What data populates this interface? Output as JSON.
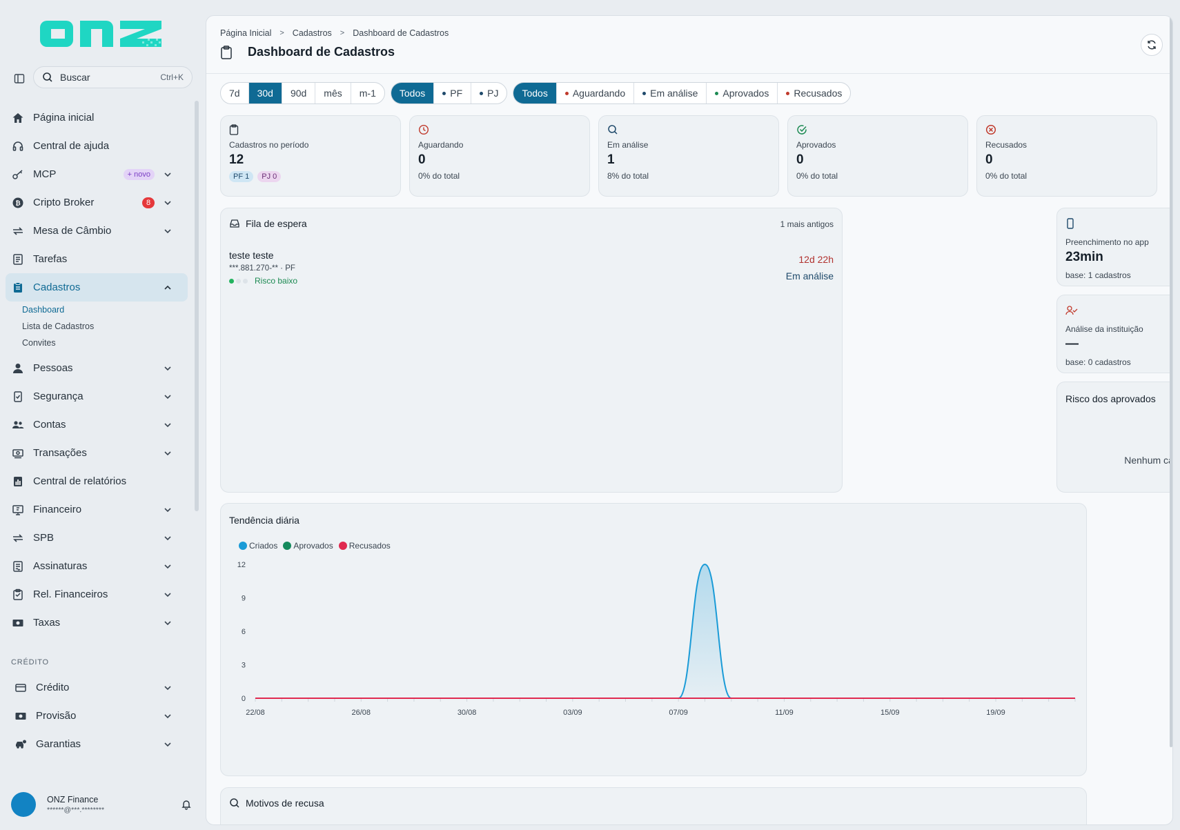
{
  "app": {
    "logo_text": "onz"
  },
  "search": {
    "placeholder": "Buscar",
    "shortcut": "Ctrl+K"
  },
  "sidebar": {
    "items": [
      {
        "label": "Página inicial",
        "icon": "home-icon"
      },
      {
        "label": "Central de ajuda",
        "icon": "headset-icon"
      },
      {
        "label": "MCP",
        "icon": "key-icon",
        "badge": "+ novo"
      },
      {
        "label": "Cripto Broker",
        "icon": "bitcoin-icon",
        "badge": "8"
      },
      {
        "label": "Mesa de Câmbio",
        "icon": "exchange-icon"
      },
      {
        "label": "Tarefas",
        "icon": "tasks-icon"
      },
      {
        "label": "Cadastros",
        "icon": "clipboard-icon"
      },
      {
        "label": "Pessoas",
        "icon": "person-icon"
      },
      {
        "label": "Segurança",
        "icon": "shield-icon"
      },
      {
        "label": "Contas",
        "icon": "people-icon"
      },
      {
        "label": "Transações",
        "icon": "money-icon"
      },
      {
        "label": "Central de relatórios",
        "icon": "report-icon"
      },
      {
        "label": "Financeiro",
        "icon": "finance-icon"
      },
      {
        "label": "SPB",
        "icon": "transfer-icon"
      },
      {
        "label": "Assinaturas",
        "icon": "signature-icon"
      },
      {
        "label": "Rel. Financeiros",
        "icon": "clipboard-list-icon"
      },
      {
        "label": "Taxas",
        "icon": "cash-icon"
      }
    ],
    "sub_items": [
      "Dashboard",
      "Lista de Cadastros",
      "Convites"
    ],
    "section_credito": "CRÉDITO",
    "credit_items": [
      {
        "label": "Crédito",
        "icon": "card-icon"
      },
      {
        "label": "Provisão",
        "icon": "money-icon"
      },
      {
        "label": "Garantias",
        "icon": "car-icon"
      }
    ]
  },
  "user": {
    "name": "ONZ Finance",
    "email": "******@***.********"
  },
  "breadcrumb": [
    "Página Inicial",
    "Cadastros",
    "Dashboard de Cadastros"
  ],
  "page_title": "Dashboard de Cadastros",
  "filters": {
    "periods": [
      "7d",
      "30d",
      "90d",
      "mês",
      "m-1"
    ],
    "period_selected": "30d",
    "types": [
      "Todos",
      "PF",
      "PJ"
    ],
    "statuses": [
      "Todos",
      "Aguardando",
      "Em análise",
      "Aprovados",
      "Recusados"
    ]
  },
  "colors": {
    "accent": "#0f6a94",
    "aguardando": "#c0392b",
    "em_analise": "#1f4a6b",
    "aprovados": "#1c8a52",
    "recusados": "#c0392b",
    "criados": "#1a9bd7",
    "recusados_line": "#e0294f"
  },
  "kpis": [
    {
      "label": "Cadastros no período",
      "value": "12",
      "pf": "PF 1",
      "pj": "PJ 0"
    },
    {
      "label": "Aguardando",
      "value": "0",
      "sub": "0% do total"
    },
    {
      "label": "Em análise",
      "value": "1",
      "sub": "8% do total"
    },
    {
      "label": "Aprovados",
      "value": "0",
      "sub": "0% do total"
    },
    {
      "label": "Recusados",
      "value": "0",
      "sub": "0% do total"
    }
  ],
  "queue": {
    "title": "Fila de espera",
    "right": "1 mais antigos",
    "items": [
      {
        "name": "teste teste",
        "doc": "***.881.270-** · PF",
        "risk": "Risco baixo",
        "time": "12d 22h",
        "status": "Em análise"
      }
    ]
  },
  "app_fill": {
    "label": "Preenchimento no app",
    "value": "23min",
    "base": "base: 1 cadastros"
  },
  "institution": {
    "label": "Análise da instituição",
    "value": "—",
    "base": "base: 0 cadastros"
  },
  "risk_approved": {
    "title": "Risco dos aprovados",
    "empty": "Nenhum cadastro aprovado no período."
  },
  "trend_title": "Tendência diária",
  "chart_data": {
    "type": "area",
    "title": "Tendência diária",
    "legend": [
      "Criados",
      "Aprovados",
      "Recusados"
    ],
    "legend_position": "top-left",
    "x_ticks": [
      "22/08",
      "26/08",
      "30/08",
      "03/09",
      "07/09",
      "11/09",
      "15/09",
      "19/09"
    ],
    "y_ticks": [
      0,
      3,
      6,
      9,
      12
    ],
    "ylim": [
      0,
      12
    ],
    "x_dates": [
      "22/08",
      "23/08",
      "24/08",
      "25/08",
      "26/08",
      "27/08",
      "28/08",
      "29/08",
      "30/08",
      "31/08",
      "01/09",
      "02/09",
      "03/09",
      "04/09",
      "05/09",
      "06/09",
      "07/09",
      "08/09",
      "09/09",
      "10/09",
      "11/09",
      "12/09",
      "13/09",
      "14/09",
      "15/09",
      "16/09",
      "17/09",
      "18/09",
      "19/09",
      "20/09",
      "21/09",
      "22/09"
    ],
    "series": [
      {
        "name": "Criados",
        "values": [
          0,
          0,
          0,
          0,
          0,
          0,
          0,
          0,
          0,
          0,
          0,
          0,
          0,
          0,
          0,
          0,
          0,
          12,
          0,
          0,
          0,
          0,
          0,
          0,
          0,
          0,
          0,
          0,
          0,
          0,
          0,
          0
        ]
      },
      {
        "name": "Aprovados",
        "values": [
          0,
          0,
          0,
          0,
          0,
          0,
          0,
          0,
          0,
          0,
          0,
          0,
          0,
          0,
          0,
          0,
          0,
          0,
          0,
          0,
          0,
          0,
          0,
          0,
          0,
          0,
          0,
          0,
          0,
          0,
          0,
          0
        ]
      },
      {
        "name": "Recusados",
        "values": [
          0,
          0,
          0,
          0,
          0,
          0,
          0,
          0,
          0,
          0,
          0,
          0,
          0,
          0,
          0,
          0,
          0,
          0,
          0,
          0,
          0,
          0,
          0,
          0,
          0,
          0,
          0,
          0,
          0,
          0,
          0,
          0
        ]
      }
    ],
    "grid": true
  },
  "reasons_title": "Motivos de recusa"
}
